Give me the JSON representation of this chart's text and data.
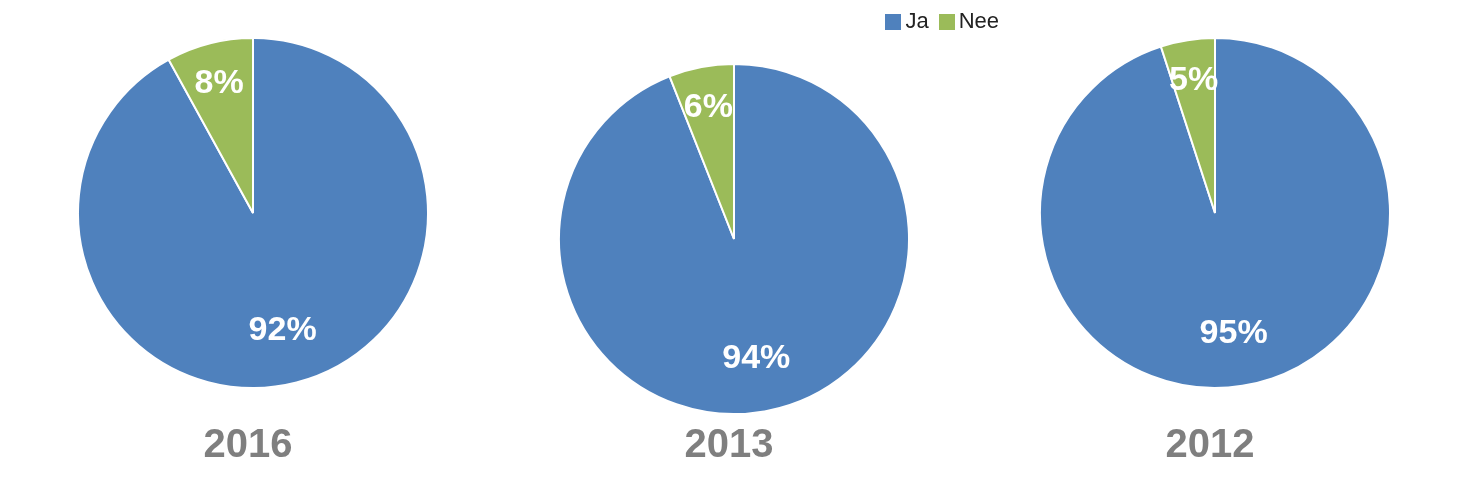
{
  "chart_data": [
    {
      "type": "pie",
      "title": "2016",
      "categories": [
        null,
        null
      ],
      "values": [
        92,
        8
      ],
      "colors": [
        "#4f81bd",
        "#9bbb59"
      ],
      "value_labels": [
        "92%",
        "8%"
      ]
    },
    {
      "type": "pie",
      "title": "2013",
      "categories": [
        "Ja",
        "Nee"
      ],
      "values": [
        94,
        6
      ],
      "colors": [
        "#4f81bd",
        "#9bbb59"
      ],
      "value_labels": [
        "94%",
        "6%"
      ],
      "legend": "top right"
    },
    {
      "type": "pie",
      "title": "2012",
      "categories": [
        null,
        null
      ],
      "values": [
        95,
        5
      ],
      "colors": [
        "#4f81bd",
        "#9bbb59"
      ],
      "value_labels": [
        "95%",
        "5%"
      ]
    }
  ]
}
